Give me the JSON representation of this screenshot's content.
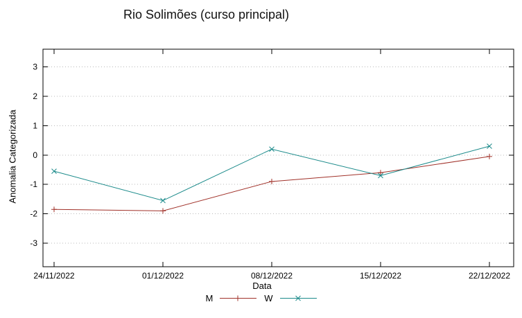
{
  "title": "Rio Solimões (curso principal)",
  "chart_data": {
    "type": "line",
    "title": "Rio Solimões (curso principal)",
    "xlabel": "Data",
    "ylabel": "Anomalia Categorizada",
    "x": [
      "24/11/2022",
      "01/12/2022",
      "08/12/2022",
      "15/12/2022",
      "22/12/2022"
    ],
    "yticks": [
      -3,
      -2,
      -1,
      0,
      1,
      2,
      3
    ],
    "ylim": [
      -3.8,
      3.6
    ],
    "grid": "horizontal dotted gridlines at integer y ticks",
    "legend_position": "bottom center, below x-axis label",
    "series": [
      {
        "name": "M",
        "marker": "plus",
        "color": "#a03028",
        "values": [
          -1.85,
          -1.9,
          -0.9,
          -0.6,
          -0.05
        ]
      },
      {
        "name": "W",
        "marker": "x",
        "color": "#1a8a8a",
        "values": [
          -0.55,
          -1.55,
          0.2,
          -0.7,
          0.3
        ]
      }
    ]
  }
}
